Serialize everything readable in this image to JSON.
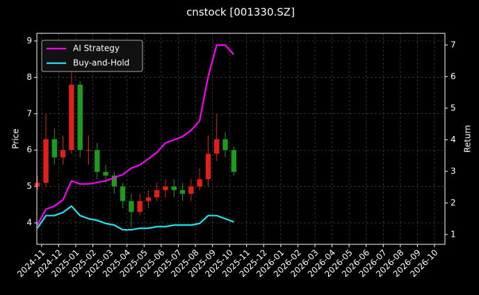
{
  "chart_data": {
    "type": "candlestick",
    "title": "cnstock [001330.SZ]",
    "ylabel": "Price",
    "y2label": "Return",
    "xlim": [
      -0.28,
      23.61
    ],
    "xticks": [
      {
        "value": 0,
        "label": "2024-11"
      },
      {
        "value": 1,
        "label": "2024-12"
      },
      {
        "value": 2,
        "label": "2025-01"
      },
      {
        "value": 3,
        "label": "2025-02"
      },
      {
        "value": 4,
        "label": "2025-03"
      },
      {
        "value": 5,
        "label": "2025-04"
      },
      {
        "value": 6,
        "label": "2025-05"
      },
      {
        "value": 7,
        "label": "2025-06"
      },
      {
        "value": 8,
        "label": "2025-07"
      },
      {
        "value": 9,
        "label": "2025-08"
      },
      {
        "value": 10,
        "label": "2025-09"
      },
      {
        "value": 11,
        "label": "2025-10"
      },
      {
        "value": 12,
        "label": "2025-11"
      },
      {
        "value": 13,
        "label": "2025-12"
      },
      {
        "value": 14,
        "label": "2026-01"
      },
      {
        "value": 15,
        "label": "2026-02"
      },
      {
        "value": 16,
        "label": "2026-03"
      },
      {
        "value": 17,
        "label": "2026-04"
      },
      {
        "value": 18,
        "label": "2026-05"
      },
      {
        "value": 19,
        "label": "2026-06"
      },
      {
        "value": 20,
        "label": "2026-07"
      },
      {
        "value": 21,
        "label": "2026-08"
      },
      {
        "value": 22,
        "label": "2026-09"
      },
      {
        "value": 23,
        "label": "2026-10"
      }
    ],
    "ylim": [
      3.41,
      9.21
    ],
    "yticks": [
      4,
      5,
      6,
      7,
      8,
      9
    ],
    "y2lim": [
      0.69,
      7.37
    ],
    "y2ticks": [
      1,
      2,
      3,
      4,
      5,
      6,
      7
    ],
    "grid": true,
    "legend": "upper left",
    "up_color": "#e0201a",
    "down_color": "#1f9a1f",
    "x": [
      -0.25,
      0.25,
      0.75,
      1.25,
      1.75,
      2.25,
      2.75,
      3.25,
      3.75,
      4.25,
      4.75,
      5.25,
      5.75,
      6.25,
      6.75,
      7.25,
      7.75,
      8.25,
      8.75,
      9.25,
      9.75,
      10.25,
      10.75,
      11.25
    ],
    "open": [
      5.0,
      5.1,
      6.3,
      5.8,
      6.0,
      7.8,
      6.0,
      6.0,
      5.4,
      5.3,
      5.0,
      4.6,
      4.3,
      4.6,
      4.7,
      4.9,
      5.0,
      4.9,
      4.8,
      5.0,
      5.2,
      5.9,
      6.3,
      6.0
    ],
    "high": [
      5.3,
      7.0,
      6.6,
      6.4,
      8.3,
      7.9,
      6.4,
      6.2,
      5.6,
      5.4,
      5.1,
      4.8,
      4.8,
      4.9,
      5.1,
      5.2,
      5.2,
      5.1,
      5.2,
      5.5,
      6.4,
      7.0,
      6.5,
      6.1
    ],
    "low": [
      4.9,
      5.0,
      5.6,
      5.6,
      5.9,
      5.8,
      5.6,
      5.2,
      5.1,
      4.8,
      4.4,
      3.9,
      4.2,
      4.4,
      4.6,
      4.7,
      4.7,
      4.6,
      4.6,
      4.9,
      5.0,
      5.7,
      5.8,
      5.3
    ],
    "close": [
      5.1,
      6.3,
      5.8,
      6.0,
      7.8,
      6.0,
      6.0,
      5.4,
      5.3,
      5.0,
      4.6,
      4.3,
      4.6,
      4.7,
      4.9,
      5.0,
      4.9,
      4.8,
      5.0,
      5.2,
      5.9,
      6.3,
      6.0,
      5.4
    ],
    "series": [
      {
        "name": "AI Strategy",
        "color": "#ff00ff",
        "axis": "y2",
        "values": [
          1.3,
          1.8,
          1.9,
          2.1,
          2.7,
          2.6,
          2.6,
          2.65,
          2.7,
          2.8,
          2.9,
          3.1,
          3.2,
          3.4,
          3.6,
          3.9,
          4.0,
          4.1,
          4.3,
          4.6,
          6.0,
          7.0,
          7.0,
          6.7
        ]
      },
      {
        "name": "Buy-and-Hold",
        "color": "#22e5f0",
        "axis": "y2",
        "values": [
          1.2,
          1.6,
          1.6,
          1.7,
          1.9,
          1.6,
          1.5,
          1.45,
          1.35,
          1.3,
          1.15,
          1.15,
          1.2,
          1.2,
          1.25,
          1.25,
          1.3,
          1.3,
          1.3,
          1.35,
          1.6,
          1.6,
          1.5,
          1.4
        ]
      }
    ]
  }
}
